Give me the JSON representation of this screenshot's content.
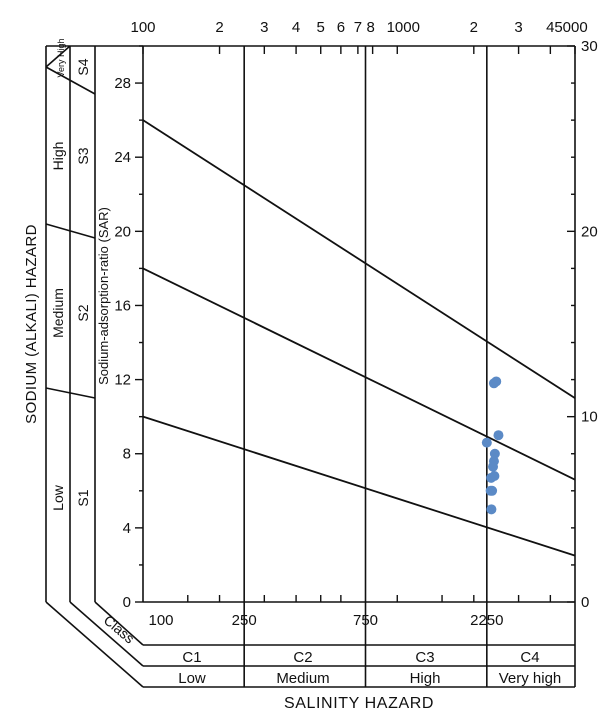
{
  "chart_data": {
    "type": "scatter",
    "title": "",
    "xlabel": "SALINITY HAZARD",
    "ylabel_outer": "SODIUM (ALKALI) HAZARD",
    "ylabel_inner": "Sodium-adsorption-ratio (SAR)",
    "x_scale": "log",
    "xlim": [
      100,
      5000
    ],
    "ylim": [
      0,
      30
    ],
    "grid": false,
    "legend": "none",
    "top_axis_ticks": [
      "100",
      "2",
      "3",
      "4",
      "5",
      "6",
      "7",
      "8",
      "1000",
      "2",
      "3",
      "4",
      "5000"
    ],
    "bottom_axis_ticks": [
      "100",
      "250",
      "750",
      "2250"
    ],
    "left_axis_ticks": [
      "28",
      "24",
      "20",
      "16",
      "12",
      "8",
      "4",
      "0"
    ],
    "right_axis_ticks": [
      "30",
      "20",
      "10",
      "0"
    ],
    "sodium_classes": [
      {
        "code": "S1",
        "name": "Low"
      },
      {
        "code": "S2",
        "name": "Medium"
      },
      {
        "code": "S3",
        "name": "High"
      },
      {
        "code": "S4",
        "name": "Very High"
      }
    ],
    "class_label": "Class",
    "salinity_classes": [
      {
        "code": "C1",
        "name": "Low"
      },
      {
        "code": "C2",
        "name": "Medium"
      },
      {
        "code": "C3",
        "name": "High"
      },
      {
        "code": "C4",
        "name": "Very high"
      }
    ],
    "class_boundaries_x": [
      250,
      750,
      2250
    ],
    "boundary_lines": [
      {
        "from": [
          100,
          10
        ],
        "to": [
          5000,
          2.5
        ]
      },
      {
        "from": [
          100,
          18
        ],
        "to": [
          5000,
          6.6
        ]
      },
      {
        "from": [
          100,
          26
        ],
        "to": [
          5000,
          11
        ]
      }
    ],
    "points_color": "#5b8ac6",
    "points": [
      {
        "x": 2250,
        "y": 8.6
      },
      {
        "x": 2400,
        "y": 11.8
      },
      {
        "x": 2450,
        "y": 11.9
      },
      {
        "x": 2500,
        "y": 9.0
      },
      {
        "x": 2420,
        "y": 8.0
      },
      {
        "x": 2400,
        "y": 7.6
      },
      {
        "x": 2380,
        "y": 7.3
      },
      {
        "x": 2410,
        "y": 6.8
      },
      {
        "x": 2340,
        "y": 6.7
      },
      {
        "x": 2330,
        "y": 6.0
      },
      {
        "x": 2360,
        "y": 6.0
      },
      {
        "x": 2345,
        "y": 5.0
      }
    ]
  }
}
